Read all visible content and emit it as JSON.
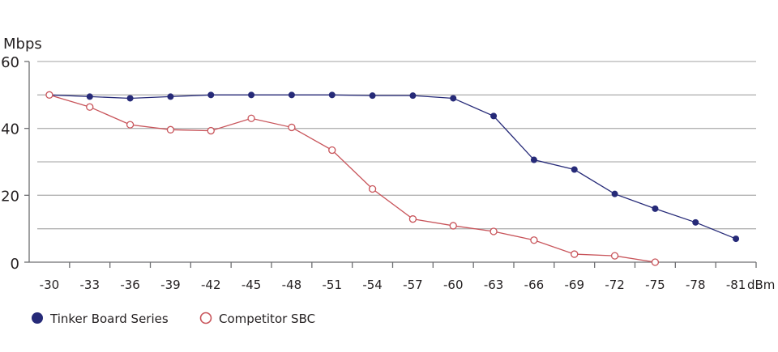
{
  "chart_data": {
    "type": "line",
    "title": "",
    "ylabel": "Mbps",
    "xlabel": "dBm",
    "ylim": [
      0,
      60
    ],
    "yticks": [
      0,
      20,
      40,
      60
    ],
    "gridlines": [
      10,
      20,
      30,
      40,
      50,
      60
    ],
    "grid": true,
    "legend_position": "bottom-left",
    "categories": [
      "-30",
      "-33",
      "-36",
      "-39",
      "-42",
      "-45",
      "-48",
      "-51",
      "-54",
      "-57",
      "-60",
      "-63",
      "-66",
      "-69",
      "-72",
      "-75",
      "-78",
      "-81"
    ],
    "series": [
      {
        "name": "Tinker Board Series",
        "color": "#262a78",
        "marker": "filled-circle",
        "values": [
          50,
          49.5,
          49,
          49.5,
          50,
          50,
          50,
          50,
          49.8,
          49.8,
          49,
          43.7,
          30.6,
          27.7,
          20.4,
          16,
          11.9,
          7
        ]
      },
      {
        "name": "Competitor SBC",
        "color": "#c8545a",
        "marker": "open-circle",
        "values": [
          50,
          46.4,
          41.1,
          39.6,
          39.3,
          43,
          40.3,
          33.5,
          21.9,
          12.9,
          10.9,
          9.2,
          6.6,
          2.4,
          1.9,
          0,
          null,
          null
        ]
      }
    ]
  }
}
